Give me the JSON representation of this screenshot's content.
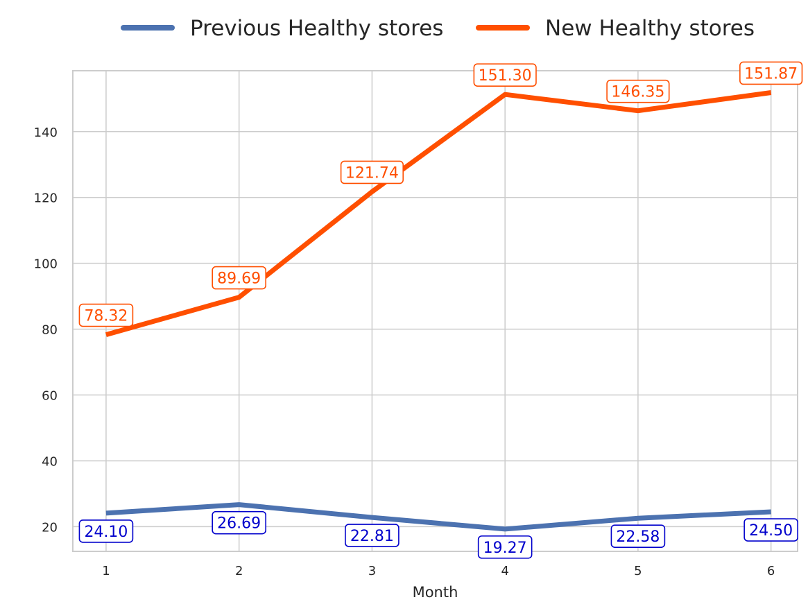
{
  "chart_data": {
    "type": "line",
    "title": "",
    "xlabel": "Month",
    "ylabel": "",
    "x": [
      1,
      2,
      3,
      4,
      5,
      6
    ],
    "xlim": [
      0.75,
      6.2
    ],
    "ylim": [
      12.5,
      158.5
    ],
    "yticks": [
      20,
      40,
      60,
      80,
      100,
      120,
      140
    ],
    "grid": true,
    "legend_position": "top-center, above plot",
    "series": [
      {
        "name": "Previous Healthy stores",
        "color": "#4c72b0",
        "label_color": "#0000cc",
        "label_placement": "below",
        "values": [
          24.1,
          26.69,
          22.81,
          19.27,
          22.58,
          24.5
        ],
        "labels": [
          "24.10",
          "26.69",
          "22.81",
          "19.27",
          "22.58",
          "24.50"
        ]
      },
      {
        "name": "New Healthy stores",
        "color": "#ff4f00",
        "label_color": "#ff4f00",
        "label_placement": "above",
        "values": [
          78.32,
          89.69,
          121.74,
          151.3,
          146.35,
          151.87
        ],
        "labels": [
          "78.32",
          "89.69",
          "121.74",
          "151.30",
          "146.35",
          "151.87"
        ]
      }
    ]
  }
}
